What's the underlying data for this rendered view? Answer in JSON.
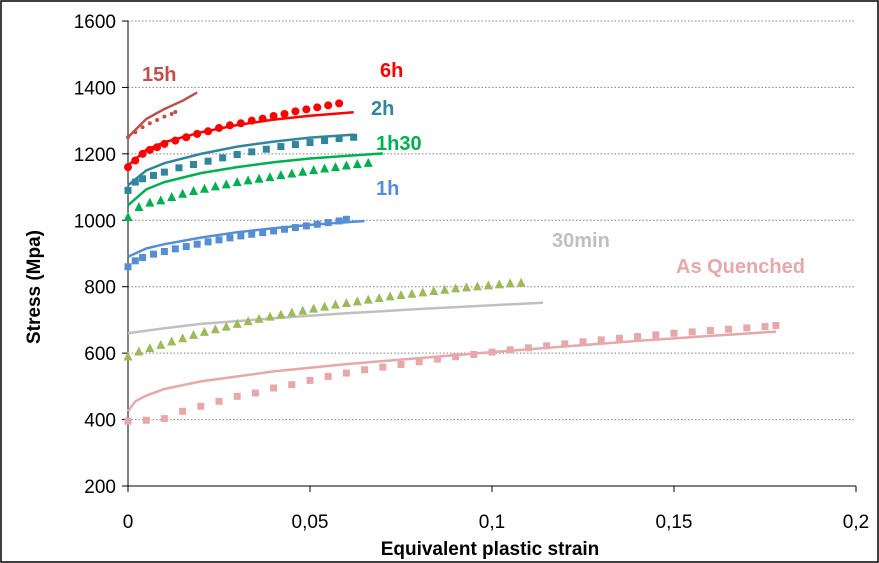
{
  "chart_data": {
    "type": "scatter",
    "title": "",
    "xlabel": "Equivalent plastic strain",
    "ylabel": "Stress (Mpa)",
    "xlim": [
      0,
      0.2
    ],
    "ylim": [
      200,
      1600
    ],
    "x_ticks": [
      "0",
      "0,05",
      "0,1",
      "0,15",
      "0,2"
    ],
    "y_ticks": [
      "200",
      "400",
      "600",
      "800",
      "1000",
      "1200",
      "1400",
      "1600"
    ],
    "grid": "horizontal-dotted",
    "series": [
      {
        "name": "15h",
        "color": "#c0504d",
        "marker": "dot-small",
        "fit": [
          [
            0,
            1250
          ],
          [
            0.005,
            1305
          ],
          [
            0.01,
            1335
          ],
          [
            0.015,
            1360
          ],
          [
            0.019,
            1385
          ]
        ],
        "points": [
          [
            0,
            1250
          ],
          [
            0.002,
            1265
          ],
          [
            0.004,
            1280
          ],
          [
            0.006,
            1292
          ],
          [
            0.008,
            1302
          ],
          [
            0.01,
            1312
          ],
          [
            0.012,
            1320
          ],
          [
            0.013,
            1326
          ]
        ]
      },
      {
        "name": "6h",
        "color": "#ff0000",
        "marker": "circle",
        "fit": [
          [
            0,
            1165
          ],
          [
            0.005,
            1212
          ],
          [
            0.01,
            1235
          ],
          [
            0.02,
            1265
          ],
          [
            0.03,
            1287
          ],
          [
            0.04,
            1303
          ],
          [
            0.05,
            1315
          ],
          [
            0.062,
            1325
          ]
        ],
        "points": [
          [
            0,
            1160
          ],
          [
            0.002,
            1180
          ],
          [
            0.004,
            1200
          ],
          [
            0.006,
            1212
          ],
          [
            0.008,
            1220
          ],
          [
            0.01,
            1230
          ],
          [
            0.013,
            1240
          ],
          [
            0.016,
            1250
          ],
          [
            0.019,
            1260
          ],
          [
            0.022,
            1268
          ],
          [
            0.025,
            1278
          ],
          [
            0.028,
            1286
          ],
          [
            0.031,
            1292
          ],
          [
            0.034,
            1300
          ],
          [
            0.037,
            1306
          ],
          [
            0.04,
            1314
          ],
          [
            0.043,
            1320
          ],
          [
            0.046,
            1328
          ],
          [
            0.049,
            1334
          ],
          [
            0.052,
            1340
          ],
          [
            0.055,
            1346
          ],
          [
            0.058,
            1352
          ]
        ]
      },
      {
        "name": "2h",
        "color": "#31859c",
        "marker": "square",
        "fit": [
          [
            0,
            1105
          ],
          [
            0.005,
            1150
          ],
          [
            0.01,
            1172
          ],
          [
            0.02,
            1200
          ],
          [
            0.03,
            1222
          ],
          [
            0.04,
            1237
          ],
          [
            0.05,
            1249
          ],
          [
            0.062,
            1258
          ]
        ],
        "points": [
          [
            0,
            1090
          ],
          [
            0.002,
            1115
          ],
          [
            0.004,
            1125
          ],
          [
            0.007,
            1135
          ],
          [
            0.01,
            1145
          ],
          [
            0.014,
            1158
          ],
          [
            0.018,
            1168
          ],
          [
            0.022,
            1178
          ],
          [
            0.026,
            1188
          ],
          [
            0.03,
            1198
          ],
          [
            0.034,
            1206
          ],
          [
            0.038,
            1214
          ],
          [
            0.042,
            1222
          ],
          [
            0.046,
            1228
          ],
          [
            0.05,
            1234
          ],
          [
            0.054,
            1240
          ],
          [
            0.058,
            1246
          ],
          [
            0.062,
            1250
          ]
        ]
      },
      {
        "name": "1h30",
        "color": "#00b050",
        "marker": "triangle",
        "fit": [
          [
            0,
            1045
          ],
          [
            0.005,
            1093
          ],
          [
            0.01,
            1115
          ],
          [
            0.02,
            1142
          ],
          [
            0.03,
            1160
          ],
          [
            0.04,
            1175
          ],
          [
            0.05,
            1186
          ],
          [
            0.06,
            1194
          ],
          [
            0.07,
            1201
          ]
        ],
        "points": [
          [
            0,
            1010
          ],
          [
            0.003,
            1040
          ],
          [
            0.006,
            1053
          ],
          [
            0.009,
            1060
          ],
          [
            0.012,
            1070
          ],
          [
            0.015,
            1080
          ],
          [
            0.018,
            1088
          ],
          [
            0.021,
            1095
          ],
          [
            0.024,
            1102
          ],
          [
            0.027,
            1108
          ],
          [
            0.03,
            1115
          ],
          [
            0.033,
            1120
          ],
          [
            0.036,
            1125
          ],
          [
            0.039,
            1130
          ],
          [
            0.042,
            1136
          ],
          [
            0.045,
            1141
          ],
          [
            0.048,
            1146
          ],
          [
            0.051,
            1151
          ],
          [
            0.054,
            1156
          ],
          [
            0.057,
            1160
          ],
          [
            0.06,
            1165
          ],
          [
            0.063,
            1169
          ],
          [
            0.066,
            1173
          ]
        ]
      },
      {
        "name": "1h",
        "color": "#558ed5",
        "marker": "square",
        "fit": [
          [
            0,
            890
          ],
          [
            0.005,
            915
          ],
          [
            0.01,
            928
          ],
          [
            0.02,
            948
          ],
          [
            0.03,
            964
          ],
          [
            0.04,
            976
          ],
          [
            0.05,
            986
          ],
          [
            0.06,
            994
          ],
          [
            0.065,
            998
          ]
        ],
        "points": [
          [
            0,
            860
          ],
          [
            0.002,
            878
          ],
          [
            0.004,
            888
          ],
          [
            0.007,
            898
          ],
          [
            0.01,
            906
          ],
          [
            0.013,
            914
          ],
          [
            0.016,
            921
          ],
          [
            0.019,
            928
          ],
          [
            0.022,
            935
          ],
          [
            0.025,
            941
          ],
          [
            0.028,
            947
          ],
          [
            0.031,
            953
          ],
          [
            0.034,
            958
          ],
          [
            0.037,
            963
          ],
          [
            0.04,
            968
          ],
          [
            0.043,
            973
          ],
          [
            0.046,
            978
          ],
          [
            0.049,
            983
          ],
          [
            0.052,
            988
          ],
          [
            0.055,
            993
          ],
          [
            0.058,
            998
          ],
          [
            0.06,
            1003
          ]
        ]
      },
      {
        "name": "30min",
        "color": "#c0c0c0",
        "marker": "triangle",
        "marker_color": "#9bbb59",
        "fit": [
          [
            0,
            660
          ],
          [
            0.01,
            675
          ],
          [
            0.02,
            688
          ],
          [
            0.04,
            705
          ],
          [
            0.06,
            720
          ],
          [
            0.08,
            733
          ],
          [
            0.1,
            744
          ],
          [
            0.114,
            752
          ]
        ],
        "points": [
          [
            0,
            590
          ],
          [
            0.003,
            605
          ],
          [
            0.006,
            615
          ],
          [
            0.009,
            625
          ],
          [
            0.012,
            635
          ],
          [
            0.015,
            645
          ],
          [
            0.018,
            655
          ],
          [
            0.021,
            664
          ],
          [
            0.024,
            672
          ],
          [
            0.027,
            680
          ],
          [
            0.03,
            688
          ],
          [
            0.033,
            696
          ],
          [
            0.036,
            703
          ],
          [
            0.039,
            710
          ],
          [
            0.042,
            716
          ],
          [
            0.045,
            722
          ],
          [
            0.048,
            728
          ],
          [
            0.051,
            734
          ],
          [
            0.054,
            740
          ],
          [
            0.057,
            746
          ],
          [
            0.06,
            751
          ],
          [
            0.063,
            756
          ],
          [
            0.066,
            761
          ],
          [
            0.069,
            766
          ],
          [
            0.072,
            771
          ],
          [
            0.075,
            775
          ],
          [
            0.078,
            779
          ],
          [
            0.081,
            783
          ],
          [
            0.084,
            787
          ],
          [
            0.087,
            791
          ],
          [
            0.09,
            795
          ],
          [
            0.093,
            798
          ],
          [
            0.096,
            801
          ],
          [
            0.099,
            804
          ],
          [
            0.102,
            807
          ],
          [
            0.105,
            810
          ],
          [
            0.108,
            812
          ]
        ]
      },
      {
        "name": "As Quenched",
        "color": "#e6a8a8",
        "marker": "square",
        "fit": [
          [
            0,
            425
          ],
          [
            0.002,
            455
          ],
          [
            0.005,
            472
          ],
          [
            0.01,
            492
          ],
          [
            0.02,
            515
          ],
          [
            0.04,
            545
          ],
          [
            0.06,
            567
          ],
          [
            0.08,
            585
          ],
          [
            0.1,
            603
          ],
          [
            0.12,
            620
          ],
          [
            0.14,
            637
          ],
          [
            0.16,
            652
          ],
          [
            0.178,
            665
          ]
        ],
        "points": [
          [
            0,
            395
          ],
          [
            0.005,
            398
          ],
          [
            0.01,
            403
          ],
          [
            0.015,
            425
          ],
          [
            0.02,
            440
          ],
          [
            0.025,
            455
          ],
          [
            0.03,
            470
          ],
          [
            0.035,
            480
          ],
          [
            0.04,
            495
          ],
          [
            0.045,
            505
          ],
          [
            0.05,
            518
          ],
          [
            0.055,
            530
          ],
          [
            0.06,
            540
          ],
          [
            0.065,
            550
          ],
          [
            0.07,
            558
          ],
          [
            0.075,
            566
          ],
          [
            0.08,
            574
          ],
          [
            0.085,
            582
          ],
          [
            0.09,
            589
          ],
          [
            0.095,
            596
          ],
          [
            0.1,
            603
          ],
          [
            0.105,
            610
          ],
          [
            0.11,
            616
          ],
          [
            0.115,
            622
          ],
          [
            0.12,
            628
          ],
          [
            0.125,
            634
          ],
          [
            0.13,
            640
          ],
          [
            0.135,
            645
          ],
          [
            0.14,
            650
          ],
          [
            0.145,
            655
          ],
          [
            0.15,
            660
          ],
          [
            0.155,
            664
          ],
          [
            0.16,
            668
          ],
          [
            0.165,
            672
          ],
          [
            0.17,
            676
          ],
          [
            0.175,
            680
          ],
          [
            0.178,
            683
          ]
        ]
      }
    ]
  }
}
